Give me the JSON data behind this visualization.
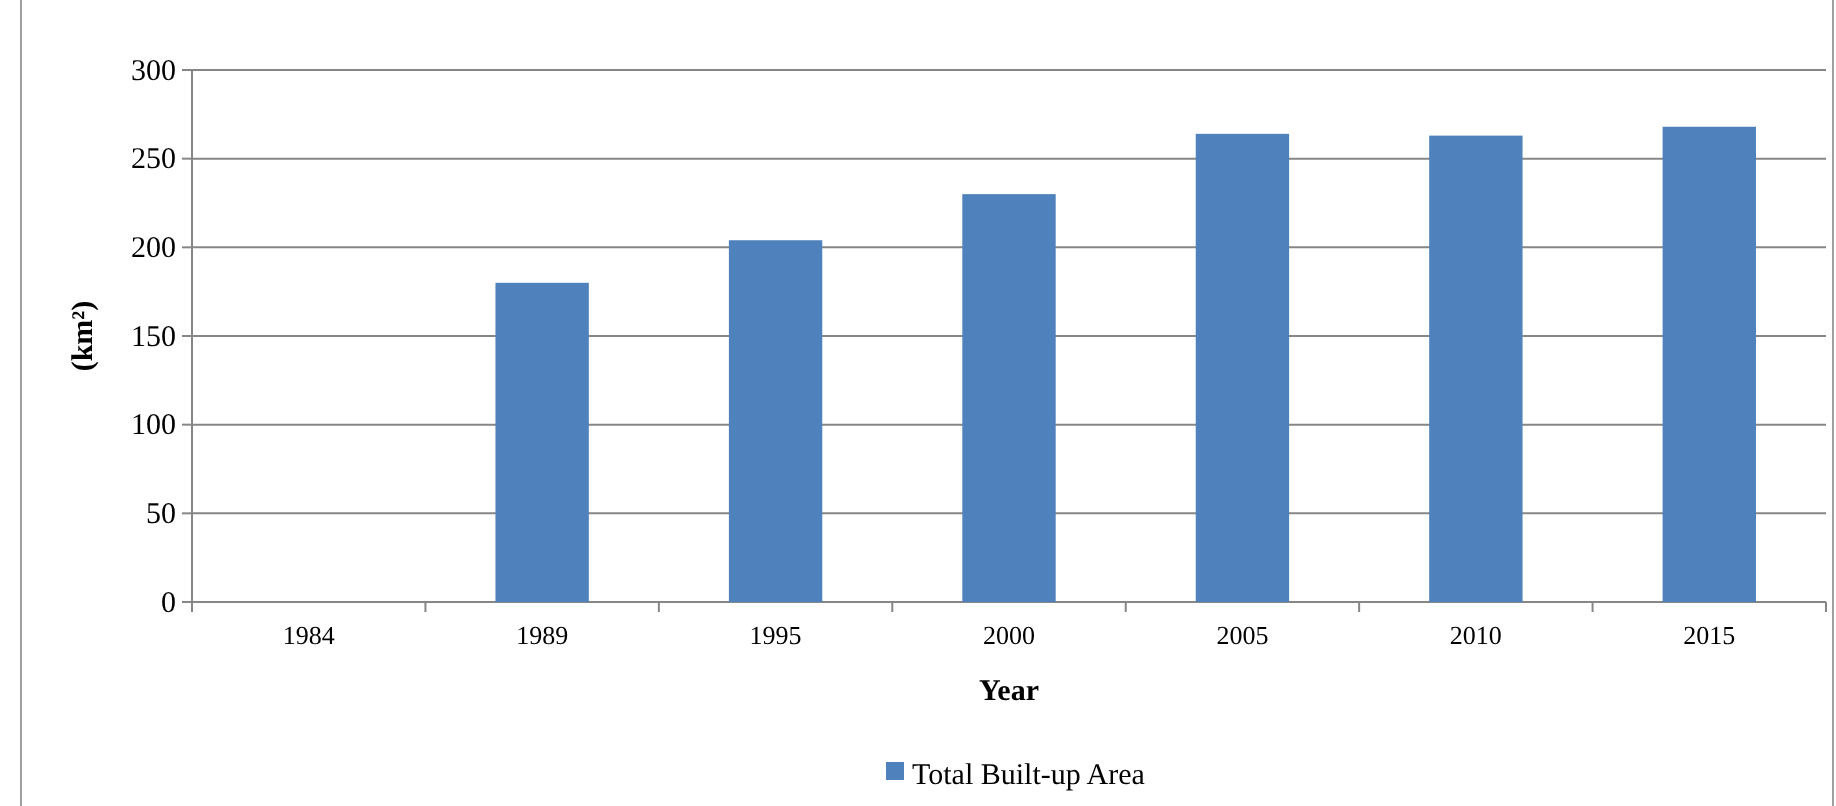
{
  "chart_data": {
    "type": "bar",
    "ylabel": "(km²)",
    "xlabel": "Year",
    "categories": [
      "1984",
      "1989",
      "1995",
      "2000",
      "2005",
      "2010",
      "2015"
    ],
    "series": [
      {
        "name": "Total Built-up Area",
        "color": "#4f81bd",
        "values": [
          null,
          180,
          204,
          230,
          264,
          263,
          268
        ]
      }
    ],
    "ylim": [
      0,
      300
    ],
    "yticks": [
      0,
      50,
      100,
      150,
      200,
      250,
      300
    ],
    "grid": "y",
    "legend": "bottom"
  }
}
